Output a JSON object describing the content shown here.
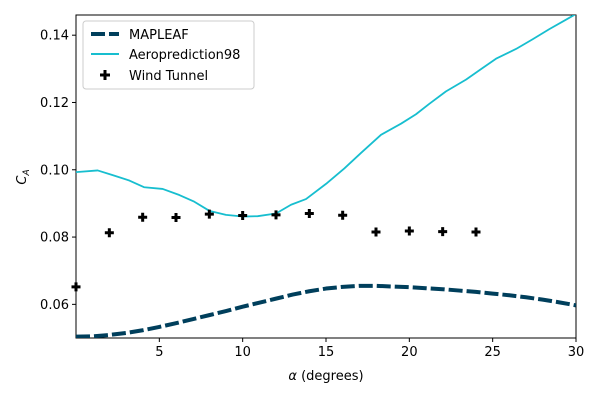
{
  "chart_data": {
    "type": "line",
    "xlabel_var": "α",
    "xlabel_unit": "(degrees)",
    "ylabel_var": "C",
    "ylabel_sub": "A",
    "xlim": [
      0,
      30
    ],
    "ylim": [
      0.05,
      0.146
    ],
    "x_ticks": [
      5,
      10,
      15,
      20,
      25,
      30
    ],
    "x_tick_labels": [
      "5",
      "10",
      "15",
      "20",
      "25",
      "30"
    ],
    "y_ticks": [
      0.06,
      0.08,
      0.1,
      0.12,
      0.14
    ],
    "y_tick_labels": [
      "0.06",
      "0.08",
      "0.10",
      "0.12",
      "0.14"
    ],
    "grid": false,
    "legend_position": "top-left",
    "series": [
      {
        "name": "MAPLEAF",
        "kind": "line",
        "style": "dashed",
        "color": "#003f5c",
        "x": [
          0,
          1,
          2,
          3,
          4,
          5,
          6,
          7,
          8,
          9,
          10,
          11,
          12,
          13,
          14,
          15,
          16,
          17,
          18,
          19,
          20,
          21,
          22,
          23,
          24,
          25,
          26,
          27,
          28,
          29,
          30
        ],
        "y": [
          0.0504,
          0.0505,
          0.0509,
          0.0515,
          0.0523,
          0.0533,
          0.0544,
          0.0556,
          0.0568,
          0.058,
          0.0593,
          0.0605,
          0.0617,
          0.0629,
          0.0639,
          0.0647,
          0.0652,
          0.0655,
          0.0655,
          0.0653,
          0.0651,
          0.0648,
          0.0645,
          0.0641,
          0.0637,
          0.0632,
          0.0627,
          0.0621,
          0.0614,
          0.0606,
          0.0597
        ]
      },
      {
        "name": "Aeroprediction98",
        "kind": "line",
        "style": "solid",
        "color": "#17becf",
        "x": [
          0,
          1.3,
          2.2,
          3.2,
          4.1,
          5.2,
          6.2,
          7.1,
          8.0,
          9.0,
          10.0,
          10.9,
          12.0,
          12.9,
          13.8,
          15.0,
          16.1,
          17.1,
          18.3,
          19.5,
          20.4,
          21.2,
          22.2,
          23.4,
          24.3,
          25.2,
          26.4,
          27.4,
          28.4,
          29.4,
          30.0
        ],
        "y": [
          0.0993,
          0.0998,
          0.0984,
          0.0968,
          0.0948,
          0.0943,
          0.0925,
          0.0905,
          0.0878,
          0.0866,
          0.0861,
          0.0862,
          0.087,
          0.0896,
          0.0913,
          0.0958,
          0.1004,
          0.105,
          0.1104,
          0.1137,
          0.1165,
          0.1196,
          0.1233,
          0.1268,
          0.1299,
          0.133,
          0.1359,
          0.1388,
          0.1418,
          0.1446,
          0.1463
        ]
      },
      {
        "name": "Wind Tunnel",
        "kind": "marker",
        "marker": "plus",
        "color": "#000000",
        "x": [
          0,
          2,
          4,
          6,
          8,
          10,
          12,
          14,
          16,
          18,
          20,
          22,
          24
        ],
        "y": [
          0.0652,
          0.0813,
          0.0859,
          0.0858,
          0.0868,
          0.0864,
          0.0866,
          0.087,
          0.0865,
          0.0815,
          0.0818,
          0.0816,
          0.0815
        ]
      }
    ]
  }
}
